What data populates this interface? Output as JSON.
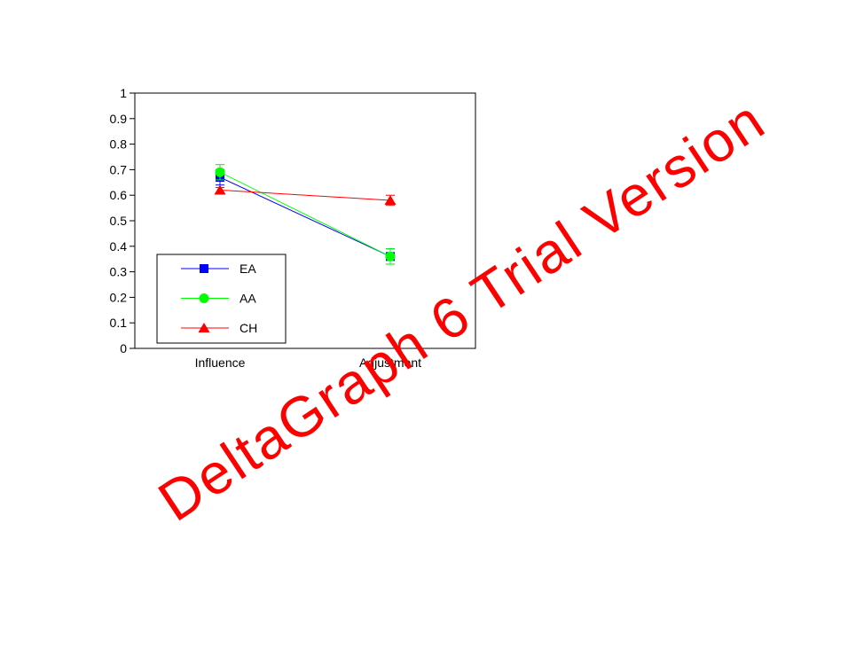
{
  "chart_data": {
    "type": "line",
    "categories": [
      "Influence",
      "Adjustment"
    ],
    "series": [
      {
        "name": "EA",
        "values": [
          0.67,
          0.36
        ],
        "error": [
          0.03,
          0.03
        ],
        "color": "#0000ff",
        "marker": "square"
      },
      {
        "name": "AA",
        "values": [
          0.69,
          0.36
        ],
        "error": [
          0.03,
          0.03
        ],
        "color": "#00ff00",
        "marker": "circle"
      },
      {
        "name": "CH",
        "values": [
          0.62,
          0.58
        ],
        "error": [
          0.01,
          0.02
        ],
        "color": "#ff0000",
        "marker": "triangle"
      }
    ],
    "title": "",
    "xlabel": "",
    "ylabel": "",
    "ylim": [
      0,
      1
    ],
    "yticks": [
      "0",
      "0.1",
      "0.2",
      "0.3",
      "0.4",
      "0.5",
      "0.6",
      "0.7",
      "0.8",
      "0.9",
      "1"
    ],
    "grid": false,
    "legend_position": "bottom-left"
  },
  "watermark": {
    "text": "DeltaGraph 6 Trial Version",
    "color": "#ff0000"
  }
}
